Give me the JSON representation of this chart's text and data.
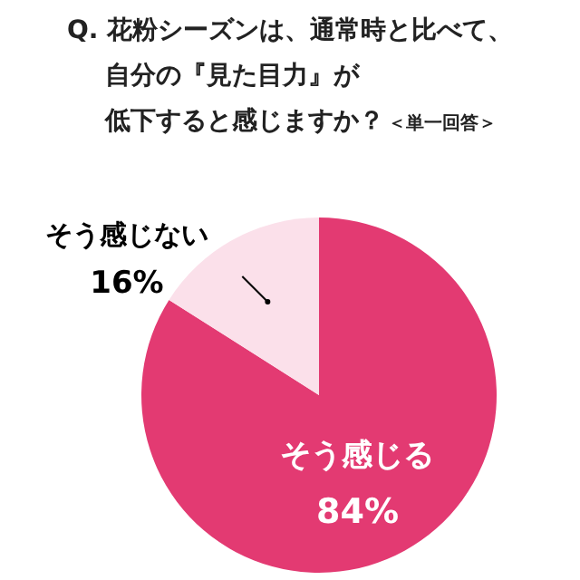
{
  "chart_data": {
    "type": "pie",
    "title": "Q. 花粉シーズンは、通常時と比べて、自分の『見た目力』が低下すると感じますか？",
    "subtitle": "＜単一回答＞",
    "categories": [
      "そう感じる",
      "そう感じない"
    ],
    "values": [
      84,
      16
    ],
    "value_labels": [
      "84%",
      "16%"
    ],
    "colors": [
      "#e33a72",
      "#fbe0ea"
    ]
  }
}
